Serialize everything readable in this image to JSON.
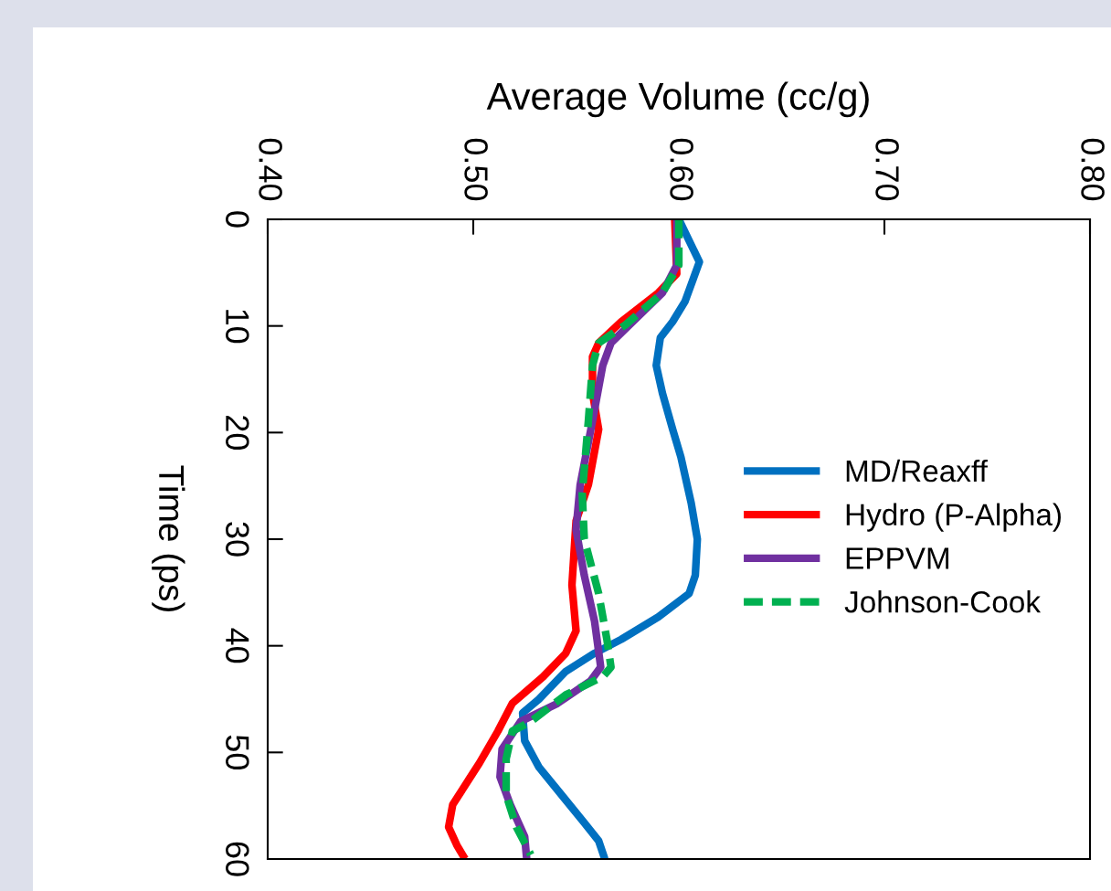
{
  "chart_data": {
    "type": "line",
    "xlabel": "Average Volume (cc/g)",
    "ylabel": "Time (ps)",
    "xlim": [
      0.4,
      0.8
    ],
    "xticks": [
      {
        "value": 0.4,
        "label": "0.40"
      },
      {
        "value": 0.5,
        "label": "0.50"
      },
      {
        "value": 0.6,
        "label": "0.60"
      },
      {
        "value": 0.7,
        "label": "0.70"
      },
      {
        "value": 0.8,
        "label": "0.80"
      }
    ],
    "ylim": [
      60,
      0
    ],
    "yticks": [
      0,
      10,
      20,
      30,
      40,
      50,
      60
    ],
    "grid": false,
    "legend": "right",
    "marker": "none",
    "series": [
      {
        "name": "MD/Reaxff",
        "color": "#0070c0",
        "line_style": "solid",
        "values": [
          0,
          4,
          7.7,
          9.6,
          11.1,
          13.7,
          16.3,
          19.7,
          22.3,
          26.6,
          30,
          33.4,
          35.1,
          37.3,
          39.4,
          40.7,
          42.4,
          45,
          46.3,
          48.9,
          51.4,
          54,
          56.6,
          58.3,
          60
        ],
        "x": [
          0.6,
          0.61,
          0.603,
          0.597,
          0.591,
          0.589,
          0.592,
          0.597,
          0.601,
          0.606,
          0.609,
          0.608,
          0.605,
          0.59,
          0.572,
          0.559,
          0.545,
          0.532,
          0.524,
          0.525,
          0.532,
          0.543,
          0.554,
          0.561,
          0.564
        ]
      },
      {
        "name": "Hydro (P-Alpha)",
        "color": "#ff0000",
        "line_style": "solid",
        "values": [
          0,
          5.1,
          6.9,
          9.6,
          11.6,
          12.9,
          16.3,
          19.7,
          24.9,
          28.3,
          34.3,
          38.6,
          40.7,
          42.9,
          45.4,
          48,
          51,
          54.9,
          57,
          58.7,
          60
        ],
        "x": [
          0.598,
          0.599,
          0.59,
          0.572,
          0.561,
          0.558,
          0.558,
          0.561,
          0.556,
          0.55,
          0.548,
          0.55,
          0.545,
          0.534,
          0.519,
          0.512,
          0.503,
          0.49,
          0.488,
          0.492,
          0.496
        ]
      },
      {
        "name": "EPPVM",
        "color": "#7030a0",
        "line_style": "solid",
        "values": [
          0,
          4.3,
          6.9,
          9.9,
          11.6,
          13.7,
          18.9,
          24.9,
          29.1,
          33.4,
          37.7,
          42,
          43.3,
          45.4,
          47.1,
          49.7,
          52.3,
          54.9,
          57.9,
          60
        ],
        "x": [
          0.599,
          0.599,
          0.592,
          0.576,
          0.567,
          0.563,
          0.558,
          0.552,
          0.55,
          0.554,
          0.559,
          0.562,
          0.557,
          0.541,
          0.523,
          0.514,
          0.513,
          0.518,
          0.525,
          0.526
        ]
      },
      {
        "name": "Johnson-Cook",
        "color": "#00b050",
        "line_style": "dashed",
        "values": [
          0,
          4.3,
          6.9,
          9.9,
          11.6,
          13.7,
          18.9,
          25.7,
          30,
          35.1,
          39.4,
          42,
          42.9,
          44.6,
          47.1,
          48,
          50.6,
          54,
          57,
          59.6
        ],
        "x": [
          0.6,
          0.6,
          0.592,
          0.574,
          0.561,
          0.558,
          0.556,
          0.553,
          0.554,
          0.561,
          0.565,
          0.567,
          0.563,
          0.545,
          0.528,
          0.519,
          0.516,
          0.516,
          0.521,
          0.528
        ]
      }
    ]
  }
}
